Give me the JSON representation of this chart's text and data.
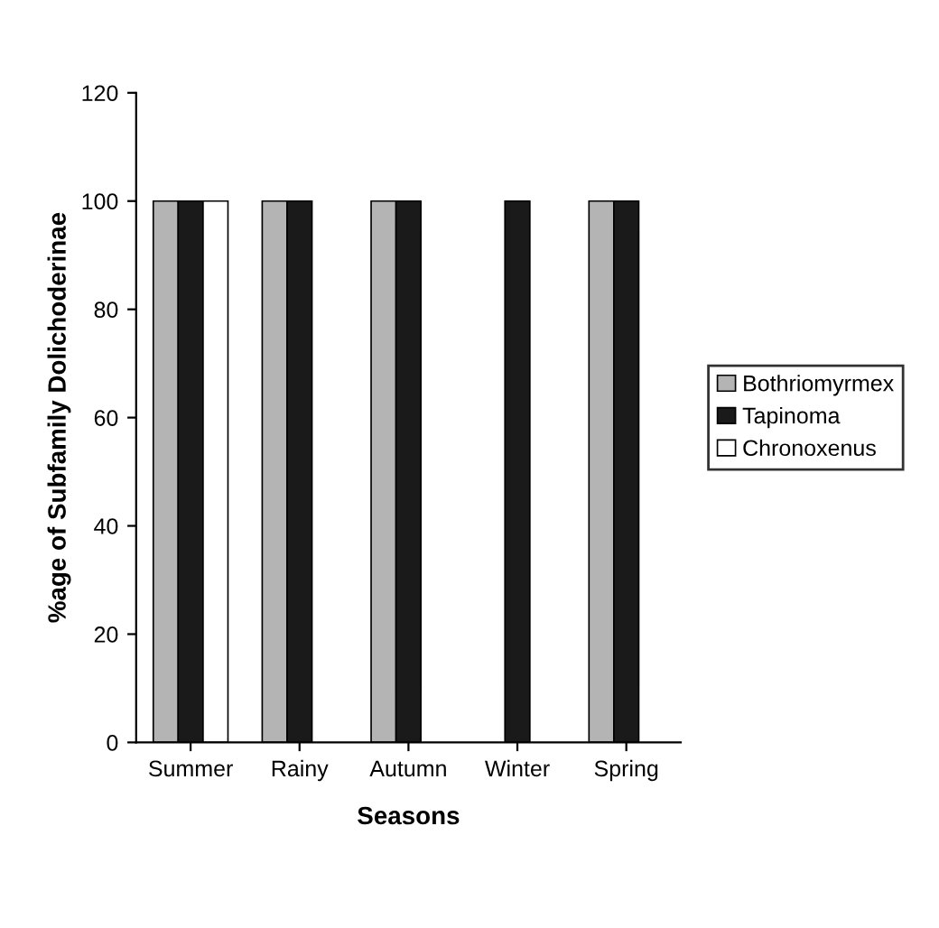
{
  "chart_data": {
    "type": "bar",
    "xlabel": "Seasons",
    "ylabel": "%age of Subfamily Dolichoderinae",
    "categories": [
      "Summer",
      "Rainy",
      "Autumn",
      "Winter",
      "Spring"
    ],
    "series": [
      {
        "name": "Bothriomyrmex",
        "color": "#b4b4b4",
        "values": [
          100,
          100,
          100,
          0,
          100
        ]
      },
      {
        "name": "Tapinoma",
        "color": "#1a1a1a",
        "values": [
          100,
          100,
          100,
          100,
          100
        ]
      },
      {
        "name": "Chronoxenus",
        "color": "#ffffff",
        "values": [
          100,
          0,
          0,
          0,
          0
        ]
      }
    ],
    "ylim": [
      0,
      120
    ],
    "yticks": [
      0,
      20,
      40,
      60,
      80,
      100,
      120
    ],
    "grid": false,
    "legend": "right"
  }
}
